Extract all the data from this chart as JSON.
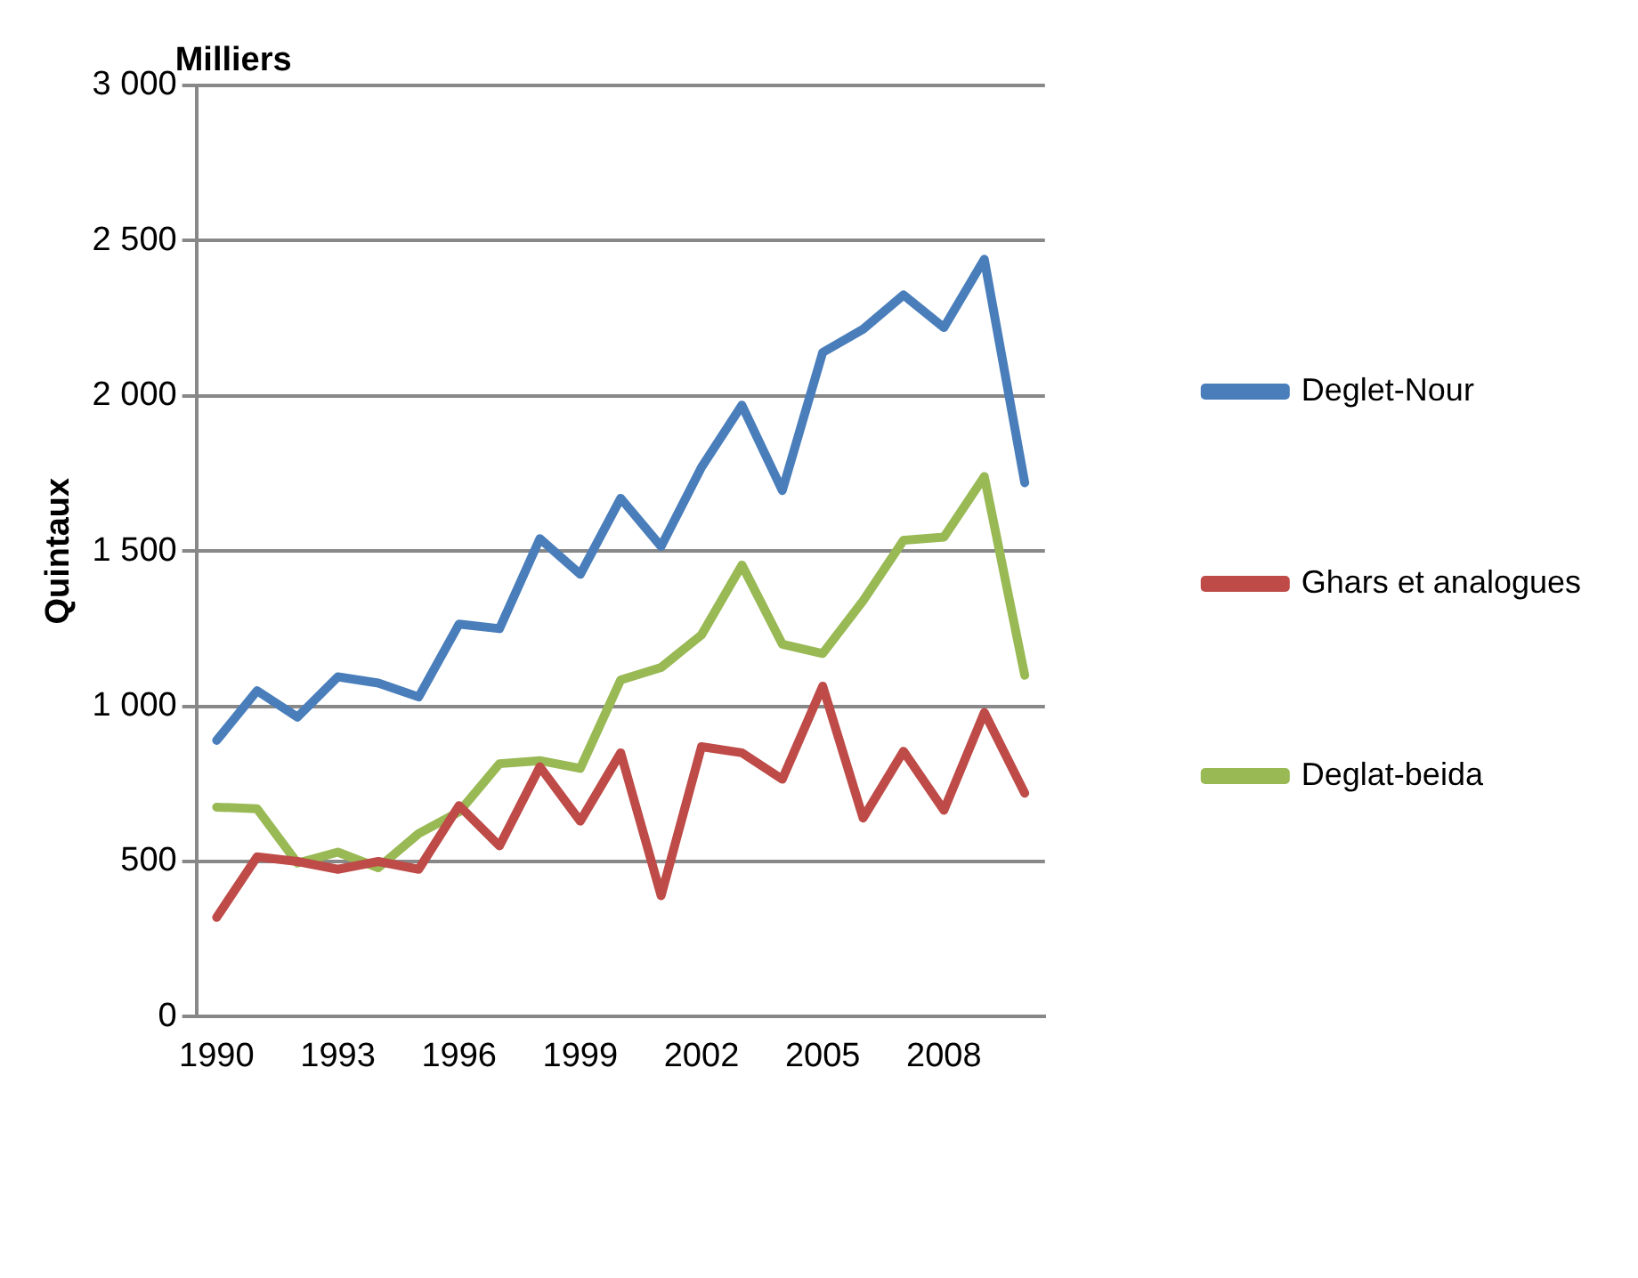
{
  "chart_data": {
    "type": "line",
    "ylabel": "Quintaux",
    "annotations": [
      "Milliers"
    ],
    "categories": [
      "1990",
      null,
      null,
      "1993",
      null,
      null,
      "1996",
      null,
      null,
      "1999",
      null,
      null,
      "2002",
      null,
      null,
      "2005",
      null,
      null,
      "2008",
      null,
      null
    ],
    "series": [
      {
        "name": "Deglet-Nour",
        "color": "#4a7ebb",
        "values": [
          890,
          1050,
          965,
          1095,
          1075,
          1030,
          1265,
          1250,
          1540,
          1425,
          1670,
          1515,
          1770,
          1970,
          1695,
          2140,
          2215,
          2325,
          2220,
          2440,
          1720
        ]
      },
      {
        "name": "Ghars et analogues",
        "color": "#be4b48",
        "values": [
          320,
          515,
          500,
          475,
          500,
          475,
          680,
          550,
          805,
          630,
          850,
          390,
          870,
          850,
          765,
          1065,
          640,
          855,
          665,
          980,
          720
        ]
      },
      {
        "name": "Deglat-beida",
        "color": "#98b954",
        "values": [
          675,
          670,
          495,
          530,
          480,
          590,
          660,
          815,
          825,
          800,
          1085,
          1125,
          1230,
          1455,
          1200,
          1170,
          1340,
          1535,
          1545,
          1740,
          1100
        ]
      }
    ],
    "ylim": [
      0,
      3000
    ],
    "yticks": [
      0,
      500,
      {
        "value": 1000,
        "label": "1 000"
      },
      {
        "value": 1500,
        "label": "1 500"
      },
      {
        "value": 2000,
        "label": "2 000"
      },
      {
        "value": 2500,
        "label": "2 500"
      },
      {
        "value": 3000,
        "label": "3 000"
      }
    ],
    "grid": "y",
    "legend": "right",
    "marker": "none",
    "line_style": "solid"
  }
}
